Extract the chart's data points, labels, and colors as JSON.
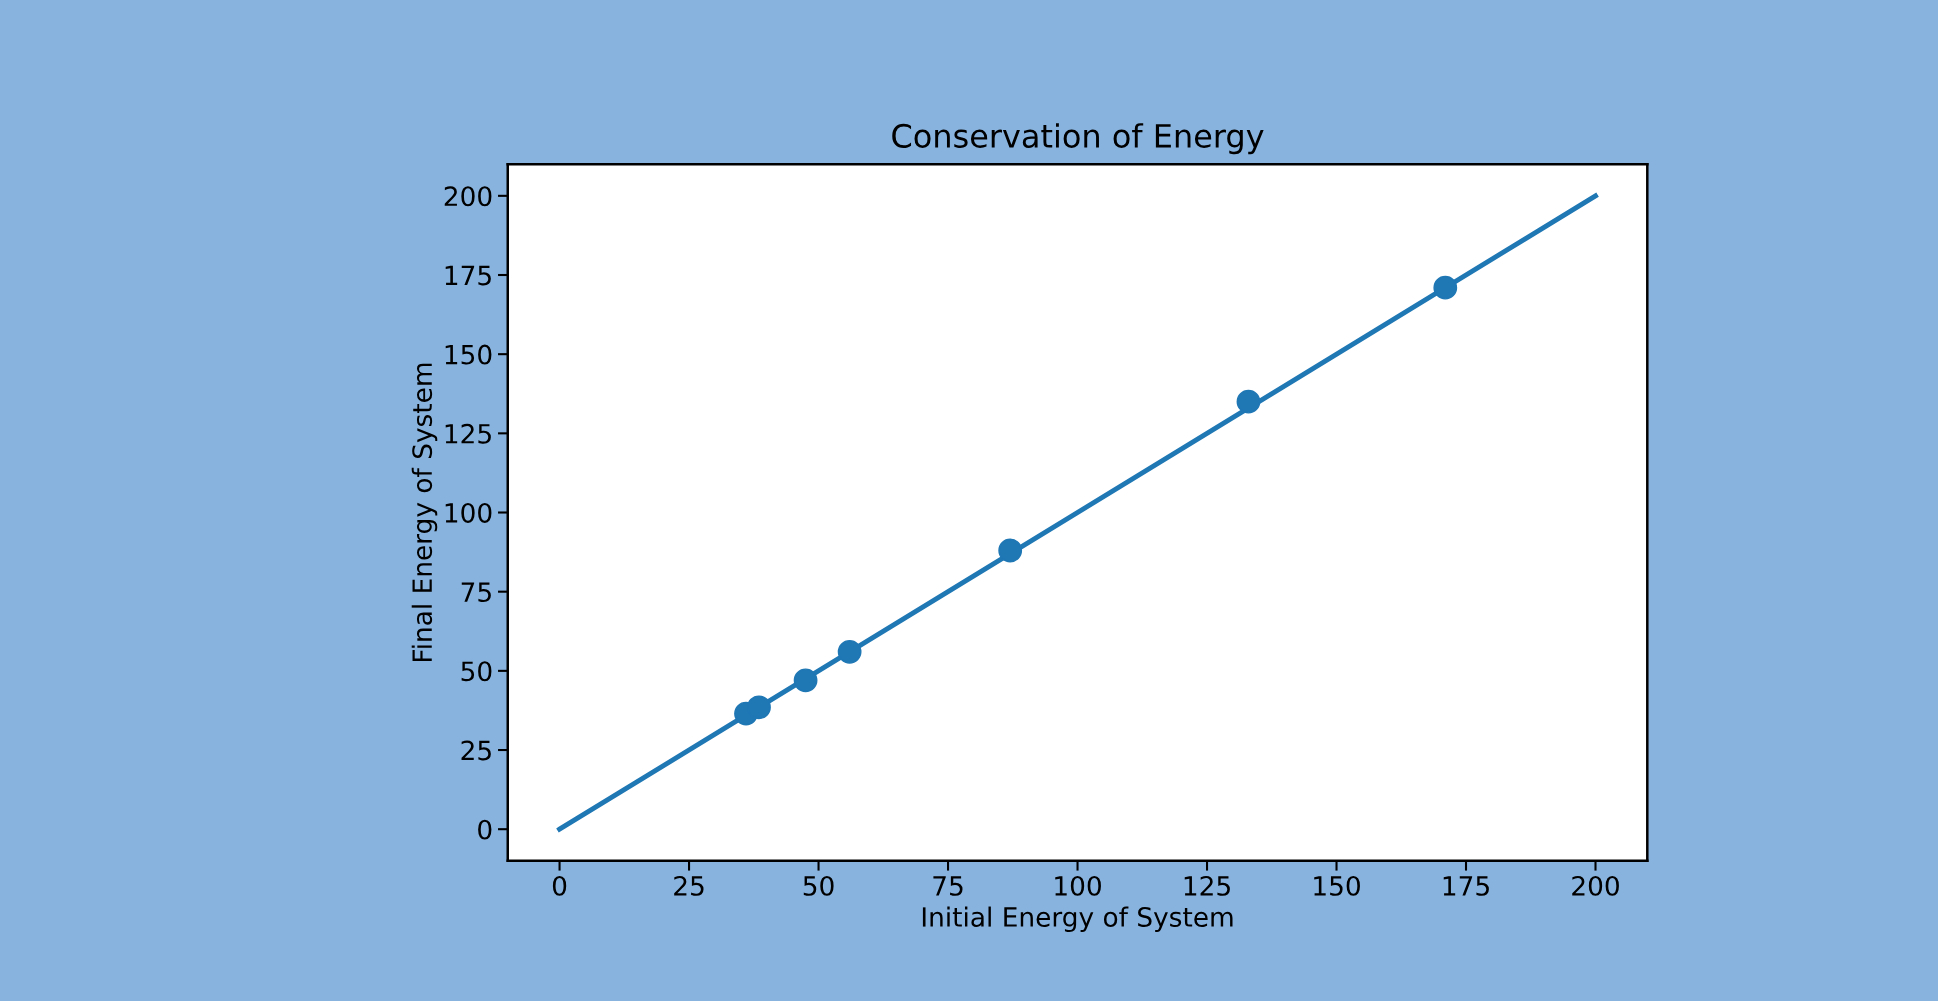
{
  "chart_data": {
    "type": "scatter",
    "title": "Conservation of Energy",
    "xlabel": "Initial Energy of System",
    "ylabel": "Final Energy of System",
    "series": [
      {
        "type": "line",
        "color": "#1f77b4",
        "x": [
          0,
          200
        ],
        "values": [
          0,
          200
        ],
        "marker": "none"
      },
      {
        "color": "#1f77b4",
        "x": [
          36,
          38.5,
          47.5,
          56,
          87,
          133,
          171
        ],
        "values": [
          36.5,
          38.5,
          47,
          56,
          88,
          135,
          171
        ],
        "marker": "circle"
      }
    ],
    "xlim": [
      -10,
      210
    ],
    "ylim": [
      -10,
      210
    ],
    "xticks": [
      0,
      25,
      50,
      75,
      100,
      125,
      150,
      175,
      200
    ],
    "yticks": [
      0,
      25,
      50,
      75,
      100,
      125,
      150,
      175,
      200
    ],
    "grid": false,
    "legend": false
  }
}
